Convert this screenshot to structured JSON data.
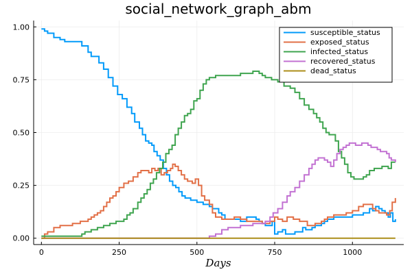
{
  "chart_data": {
    "type": "line",
    "title": "social_network_graph_abm",
    "xlabel": "Days",
    "ylabel": "",
    "xlim": [
      -25,
      1165
    ],
    "ylim": [
      -0.03,
      1.03
    ],
    "xticks": [
      0,
      250,
      500,
      750,
      1000
    ],
    "yticks": [
      0.0,
      0.25,
      0.5,
      0.75,
      1.0
    ],
    "xtick_labels": [
      "0",
      "250",
      "500",
      "750",
      "1000"
    ],
    "ytick_labels": [
      "0.00",
      "0.25",
      "0.50",
      "0.75",
      "1.00"
    ],
    "grid": true,
    "legend_position": "top-right",
    "series": [
      {
        "name": "susceptible_status",
        "color": "#009AFA",
        "points": [
          [
            0,
            0.99
          ],
          [
            10,
            0.98
          ],
          [
            20,
            0.97
          ],
          [
            40,
            0.95
          ],
          [
            60,
            0.94
          ],
          [
            75,
            0.93
          ],
          [
            100,
            0.93
          ],
          [
            130,
            0.91
          ],
          [
            150,
            0.88
          ],
          [
            160,
            0.86
          ],
          [
            175,
            0.86
          ],
          [
            185,
            0.83
          ],
          [
            200,
            0.8
          ],
          [
            215,
            0.76
          ],
          [
            230,
            0.72
          ],
          [
            245,
            0.68
          ],
          [
            260,
            0.66
          ],
          [
            275,
            0.62
          ],
          [
            290,
            0.59
          ],
          [
            300,
            0.55
          ],
          [
            315,
            0.52
          ],
          [
            325,
            0.49
          ],
          [
            335,
            0.46
          ],
          [
            345,
            0.45
          ],
          [
            355,
            0.44
          ],
          [
            362,
            0.41
          ],
          [
            372,
            0.39
          ],
          [
            382,
            0.37
          ],
          [
            392,
            0.33
          ],
          [
            402,
            0.3
          ],
          [
            412,
            0.27
          ],
          [
            422,
            0.25
          ],
          [
            432,
            0.24
          ],
          [
            442,
            0.22
          ],
          [
            452,
            0.2
          ],
          [
            462,
            0.19
          ],
          [
            480,
            0.18
          ],
          [
            500,
            0.17
          ],
          [
            520,
            0.16
          ],
          [
            540,
            0.15
          ],
          [
            550,
            0.14
          ],
          [
            560,
            0.14
          ],
          [
            570,
            0.12
          ],
          [
            580,
            0.11
          ],
          [
            590,
            0.09
          ],
          [
            620,
            0.09
          ],
          [
            640,
            0.08
          ],
          [
            650,
            0.08
          ],
          [
            660,
            0.1
          ],
          [
            680,
            0.1
          ],
          [
            690,
            0.09
          ],
          [
            700,
            0.08
          ],
          [
            710,
            0.07
          ],
          [
            720,
            0.06
          ],
          [
            735,
            0.06
          ],
          [
            742,
            0.08
          ],
          [
            750,
            0.02
          ],
          [
            760,
            0.03
          ],
          [
            775,
            0.04
          ],
          [
            785,
            0.02
          ],
          [
            795,
            0.02
          ],
          [
            815,
            0.03
          ],
          [
            830,
            0.03
          ],
          [
            840,
            0.05
          ],
          [
            850,
            0.04
          ],
          [
            860,
            0.04
          ],
          [
            870,
            0.05
          ],
          [
            880,
            0.06
          ],
          [
            895,
            0.06
          ],
          [
            900,
            0.07
          ],
          [
            910,
            0.08
          ],
          [
            920,
            0.09
          ],
          [
            940,
            0.1
          ],
          [
            960,
            0.1
          ],
          [
            980,
            0.1
          ],
          [
            1000,
            0.11
          ],
          [
            1020,
            0.11
          ],
          [
            1035,
            0.12
          ],
          [
            1045,
            0.12
          ],
          [
            1055,
            0.14
          ],
          [
            1065,
            0.13
          ],
          [
            1075,
            0.15
          ],
          [
            1085,
            0.14
          ],
          [
            1095,
            0.13
          ],
          [
            1105,
            0.12
          ],
          [
            1115,
            0.1
          ],
          [
            1122,
            0.12
          ],
          [
            1130,
            0.08
          ],
          [
            1138,
            0.09
          ]
        ]
      },
      {
        "name": "exposed_status",
        "color": "#E26F46",
        "points": [
          [
            0,
            0.0
          ],
          [
            10,
            0.02
          ],
          [
            20,
            0.03
          ],
          [
            40,
            0.05
          ],
          [
            60,
            0.06
          ],
          [
            80,
            0.06
          ],
          [
            100,
            0.07
          ],
          [
            125,
            0.08
          ],
          [
            140,
            0.08
          ],
          [
            150,
            0.09
          ],
          [
            160,
            0.1
          ],
          [
            170,
            0.11
          ],
          [
            180,
            0.12
          ],
          [
            190,
            0.13
          ],
          [
            200,
            0.15
          ],
          [
            210,
            0.17
          ],
          [
            220,
            0.19
          ],
          [
            230,
            0.2
          ],
          [
            240,
            0.22
          ],
          [
            250,
            0.24
          ],
          [
            265,
            0.26
          ],
          [
            280,
            0.27
          ],
          [
            295,
            0.29
          ],
          [
            310,
            0.31
          ],
          [
            320,
            0.32
          ],
          [
            335,
            0.32
          ],
          [
            345,
            0.31
          ],
          [
            355,
            0.33
          ],
          [
            365,
            0.32
          ],
          [
            375,
            0.33
          ],
          [
            385,
            0.3
          ],
          [
            395,
            0.31
          ],
          [
            405,
            0.32
          ],
          [
            415,
            0.33
          ],
          [
            422,
            0.35
          ],
          [
            430,
            0.34
          ],
          [
            440,
            0.32
          ],
          [
            450,
            0.3
          ],
          [
            460,
            0.28
          ],
          [
            470,
            0.27
          ],
          [
            485,
            0.26
          ],
          [
            495,
            0.28
          ],
          [
            505,
            0.25
          ],
          [
            515,
            0.2
          ],
          [
            525,
            0.18
          ],
          [
            540,
            0.16
          ],
          [
            550,
            0.12
          ],
          [
            560,
            0.1
          ],
          [
            580,
            0.09
          ],
          [
            600,
            0.09
          ],
          [
            620,
            0.1
          ],
          [
            640,
            0.09
          ],
          [
            660,
            0.08
          ],
          [
            690,
            0.08
          ],
          [
            710,
            0.07
          ],
          [
            720,
            0.07
          ],
          [
            735,
            0.08
          ],
          [
            750,
            0.1
          ],
          [
            760,
            0.09
          ],
          [
            775,
            0.08
          ],
          [
            790,
            0.1
          ],
          [
            810,
            0.09
          ],
          [
            830,
            0.08
          ],
          [
            845,
            0.08
          ],
          [
            855,
            0.06
          ],
          [
            870,
            0.06
          ],
          [
            880,
            0.07
          ],
          [
            900,
            0.08
          ],
          [
            910,
            0.09
          ],
          [
            920,
            0.1
          ],
          [
            940,
            0.11
          ],
          [
            960,
            0.11
          ],
          [
            980,
            0.12
          ],
          [
            1000,
            0.13
          ],
          [
            1020,
            0.15
          ],
          [
            1035,
            0.16
          ],
          [
            1055,
            0.16
          ],
          [
            1065,
            0.14
          ],
          [
            1075,
            0.13
          ],
          [
            1085,
            0.12
          ],
          [
            1095,
            0.12
          ],
          [
            1110,
            0.11
          ],
          [
            1120,
            0.13
          ],
          [
            1128,
            0.17
          ],
          [
            1138,
            0.19
          ]
        ]
      },
      {
        "name": "infected_status",
        "color": "#3EA44E",
        "points": [
          [
            0,
            0.01
          ],
          [
            40,
            0.01
          ],
          [
            80,
            0.01
          ],
          [
            120,
            0.01
          ],
          [
            130,
            0.02
          ],
          [
            140,
            0.03
          ],
          [
            160,
            0.04
          ],
          [
            180,
            0.05
          ],
          [
            200,
            0.06
          ],
          [
            220,
            0.07
          ],
          [
            240,
            0.08
          ],
          [
            255,
            0.08
          ],
          [
            265,
            0.09
          ],
          [
            275,
            0.11
          ],
          [
            285,
            0.12
          ],
          [
            295,
            0.14
          ],
          [
            310,
            0.17
          ],
          [
            320,
            0.19
          ],
          [
            330,
            0.21
          ],
          [
            340,
            0.23
          ],
          [
            350,
            0.26
          ],
          [
            360,
            0.28
          ],
          [
            370,
            0.31
          ],
          [
            380,
            0.33
          ],
          [
            390,
            0.36
          ],
          [
            400,
            0.4
          ],
          [
            410,
            0.42
          ],
          [
            420,
            0.44
          ],
          [
            430,
            0.49
          ],
          [
            440,
            0.52
          ],
          [
            450,
            0.55
          ],
          [
            460,
            0.58
          ],
          [
            470,
            0.59
          ],
          [
            480,
            0.61
          ],
          [
            490,
            0.65
          ],
          [
            500,
            0.66
          ],
          [
            510,
            0.7
          ],
          [
            520,
            0.73
          ],
          [
            530,
            0.75
          ],
          [
            540,
            0.76
          ],
          [
            560,
            0.77
          ],
          [
            580,
            0.77
          ],
          [
            600,
            0.77
          ],
          [
            620,
            0.77
          ],
          [
            640,
            0.78
          ],
          [
            660,
            0.78
          ],
          [
            680,
            0.79
          ],
          [
            700,
            0.78
          ],
          [
            710,
            0.77
          ],
          [
            720,
            0.76
          ],
          [
            740,
            0.75
          ],
          [
            760,
            0.74
          ],
          [
            780,
            0.72
          ],
          [
            800,
            0.71
          ],
          [
            815,
            0.69
          ],
          [
            830,
            0.66
          ],
          [
            845,
            0.63
          ],
          [
            860,
            0.61
          ],
          [
            875,
            0.59
          ],
          [
            885,
            0.57
          ],
          [
            895,
            0.55
          ],
          [
            905,
            0.52
          ],
          [
            915,
            0.5
          ],
          [
            925,
            0.49
          ],
          [
            935,
            0.49
          ],
          [
            945,
            0.46
          ],
          [
            955,
            0.41
          ],
          [
            965,
            0.38
          ],
          [
            975,
            0.35
          ],
          [
            985,
            0.31
          ],
          [
            995,
            0.29
          ],
          [
            1005,
            0.28
          ],
          [
            1015,
            0.28
          ],
          [
            1025,
            0.28
          ],
          [
            1035,
            0.29
          ],
          [
            1045,
            0.3
          ],
          [
            1055,
            0.32
          ],
          [
            1070,
            0.33
          ],
          [
            1085,
            0.33
          ],
          [
            1095,
            0.34
          ],
          [
            1105,
            0.34
          ],
          [
            1115,
            0.33
          ],
          [
            1125,
            0.36
          ],
          [
            1138,
            0.36
          ]
        ]
      },
      {
        "name": "recovered_status",
        "color": "#C271D2",
        "points": [
          [
            0,
            0.0
          ],
          [
            420,
            0.0
          ],
          [
            430,
            0.0
          ],
          [
            500,
            0.0
          ],
          [
            540,
            0.01
          ],
          [
            560,
            0.02
          ],
          [
            580,
            0.04
          ],
          [
            600,
            0.05
          ],
          [
            620,
            0.05
          ],
          [
            640,
            0.06
          ],
          [
            660,
            0.06
          ],
          [
            680,
            0.07
          ],
          [
            700,
            0.07
          ],
          [
            720,
            0.08
          ],
          [
            735,
            0.1
          ],
          [
            745,
            0.12
          ],
          [
            760,
            0.14
          ],
          [
            775,
            0.17
          ],
          [
            790,
            0.2
          ],
          [
            800,
            0.22
          ],
          [
            815,
            0.24
          ],
          [
            830,
            0.27
          ],
          [
            845,
            0.3
          ],
          [
            860,
            0.33
          ],
          [
            870,
            0.35
          ],
          [
            880,
            0.37
          ],
          [
            890,
            0.38
          ],
          [
            900,
            0.38
          ],
          [
            910,
            0.37
          ],
          [
            920,
            0.36
          ],
          [
            930,
            0.34
          ],
          [
            940,
            0.37
          ],
          [
            950,
            0.4
          ],
          [
            960,
            0.42
          ],
          [
            970,
            0.43
          ],
          [
            980,
            0.44
          ],
          [
            990,
            0.45
          ],
          [
            1000,
            0.45
          ],
          [
            1010,
            0.44
          ],
          [
            1020,
            0.44
          ],
          [
            1030,
            0.45
          ],
          [
            1040,
            0.45
          ],
          [
            1050,
            0.44
          ],
          [
            1060,
            0.43
          ],
          [
            1070,
            0.43
          ],
          [
            1080,
            0.42
          ],
          [
            1090,
            0.41
          ],
          [
            1100,
            0.41
          ],
          [
            1110,
            0.4
          ],
          [
            1118,
            0.38
          ],
          [
            1125,
            0.37
          ],
          [
            1138,
            0.36
          ]
        ]
      },
      {
        "name": "dead_status",
        "color": "#AC8D18",
        "points": [
          [
            0,
            0.0
          ],
          [
            1138,
            0.0
          ]
        ]
      }
    ]
  }
}
